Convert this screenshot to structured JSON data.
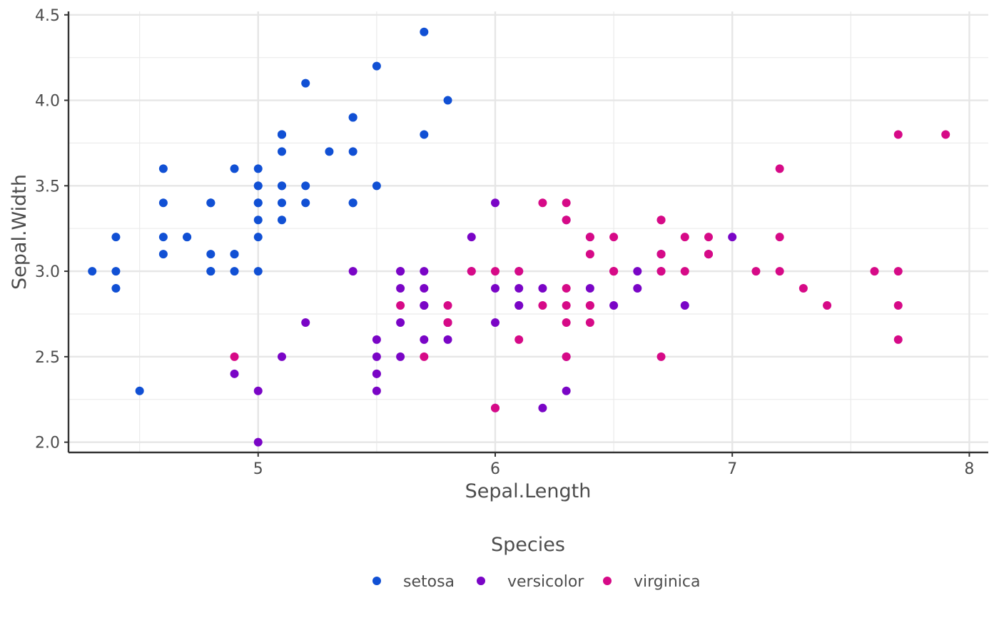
{
  "chart_data": {
    "type": "scatter",
    "title": "",
    "xlabel": "Sepal.Length",
    "ylabel": "Sepal.Width",
    "xlim": [
      4.2,
      8.08
    ],
    "ylim": [
      1.94,
      4.52
    ],
    "x_ticks": [
      5,
      6,
      7,
      8
    ],
    "y_ticks": [
      2.0,
      2.5,
      3.0,
      3.5,
      4.0,
      4.5
    ],
    "x_tick_labels": [
      "5",
      "6",
      "7",
      "8"
    ],
    "y_tick_labels": [
      "2.0",
      "2.5",
      "3.0",
      "3.5",
      "4.0",
      "4.5"
    ],
    "grid": true,
    "legend": {
      "title": "Species",
      "position": "bottom",
      "entries": [
        "setosa",
        "versicolor",
        "virginica"
      ]
    },
    "colors": {
      "setosa": "#1150d4",
      "versicolor": "#7a05c6",
      "virginica": "#d60a87"
    },
    "series": [
      {
        "name": "setosa",
        "points": [
          [
            5.1,
            3.5
          ],
          [
            4.9,
            3.0
          ],
          [
            4.7,
            3.2
          ],
          [
            4.6,
            3.1
          ],
          [
            5.0,
            3.6
          ],
          [
            5.4,
            3.9
          ],
          [
            4.6,
            3.4
          ],
          [
            5.0,
            3.4
          ],
          [
            4.4,
            2.9
          ],
          [
            4.9,
            3.1
          ],
          [
            5.4,
            3.7
          ],
          [
            4.8,
            3.4
          ],
          [
            4.8,
            3.0
          ],
          [
            4.3,
            3.0
          ],
          [
            5.8,
            4.0
          ],
          [
            5.7,
            4.4
          ],
          [
            5.4,
            3.9
          ],
          [
            5.1,
            3.5
          ],
          [
            5.7,
            3.8
          ],
          [
            5.1,
            3.8
          ],
          [
            5.4,
            3.4
          ],
          [
            5.1,
            3.7
          ],
          [
            4.6,
            3.6
          ],
          [
            5.1,
            3.3
          ],
          [
            4.8,
            3.4
          ],
          [
            5.0,
            3.0
          ],
          [
            5.0,
            3.4
          ],
          [
            5.2,
            3.5
          ],
          [
            5.2,
            3.4
          ],
          [
            4.7,
            3.2
          ],
          [
            4.8,
            3.1
          ],
          [
            5.4,
            3.4
          ],
          [
            5.2,
            4.1
          ],
          [
            5.5,
            4.2
          ],
          [
            4.9,
            3.1
          ],
          [
            5.0,
            3.2
          ],
          [
            5.5,
            3.5
          ],
          [
            4.9,
            3.6
          ],
          [
            4.4,
            3.0
          ],
          [
            5.1,
            3.4
          ],
          [
            5.0,
            3.5
          ],
          [
            4.5,
            2.3
          ],
          [
            4.4,
            3.2
          ],
          [
            5.0,
            3.5
          ],
          [
            5.1,
            3.8
          ],
          [
            4.8,
            3.0
          ],
          [
            5.1,
            3.8
          ],
          [
            4.6,
            3.2
          ],
          [
            5.3,
            3.7
          ],
          [
            5.0,
            3.3
          ]
        ]
      },
      {
        "name": "versicolor",
        "points": [
          [
            7.0,
            3.2
          ],
          [
            6.4,
            3.2
          ],
          [
            6.9,
            3.1
          ],
          [
            5.5,
            2.3
          ],
          [
            6.5,
            2.8
          ],
          [
            5.7,
            2.8
          ],
          [
            6.3,
            3.3
          ],
          [
            4.9,
            2.4
          ],
          [
            6.6,
            2.9
          ],
          [
            5.2,
            2.7
          ],
          [
            5.0,
            2.0
          ],
          [
            5.9,
            3.0
          ],
          [
            6.0,
            2.2
          ],
          [
            6.1,
            2.9
          ],
          [
            5.6,
            2.9
          ],
          [
            6.7,
            3.1
          ],
          [
            5.6,
            3.0
          ],
          [
            5.8,
            2.7
          ],
          [
            6.2,
            2.2
          ],
          [
            5.6,
            2.5
          ],
          [
            5.9,
            3.2
          ],
          [
            6.1,
            2.8
          ],
          [
            6.3,
            2.5
          ],
          [
            6.1,
            2.8
          ],
          [
            6.4,
            2.9
          ],
          [
            6.6,
            3.0
          ],
          [
            6.8,
            2.8
          ],
          [
            6.7,
            3.0
          ],
          [
            6.0,
            2.9
          ],
          [
            5.7,
            2.6
          ],
          [
            5.5,
            2.4
          ],
          [
            5.5,
            2.4
          ],
          [
            5.8,
            2.7
          ],
          [
            6.0,
            2.7
          ],
          [
            5.4,
            3.0
          ],
          [
            6.0,
            3.4
          ],
          [
            6.7,
            3.1
          ],
          [
            6.3,
            2.3
          ],
          [
            5.6,
            3.0
          ],
          [
            5.5,
            2.5
          ],
          [
            5.5,
            2.6
          ],
          [
            6.1,
            3.0
          ],
          [
            5.8,
            2.6
          ],
          [
            5.0,
            2.3
          ],
          [
            5.6,
            2.7
          ],
          [
            5.7,
            3.0
          ],
          [
            5.7,
            2.9
          ],
          [
            6.2,
            2.9
          ],
          [
            5.1,
            2.5
          ],
          [
            5.7,
            2.8
          ]
        ]
      },
      {
        "name": "virginica",
        "points": [
          [
            6.3,
            3.3
          ],
          [
            5.8,
            2.7
          ],
          [
            7.1,
            3.0
          ],
          [
            6.3,
            2.9
          ],
          [
            6.5,
            3.0
          ],
          [
            7.6,
            3.0
          ],
          [
            4.9,
            2.5
          ],
          [
            7.3,
            2.9
          ],
          [
            6.7,
            2.5
          ],
          [
            7.2,
            3.6
          ],
          [
            6.5,
            3.2
          ],
          [
            6.4,
            2.7
          ],
          [
            6.8,
            3.0
          ],
          [
            5.7,
            2.5
          ],
          [
            5.8,
            2.8
          ],
          [
            6.4,
            3.2
          ],
          [
            6.5,
            3.0
          ],
          [
            7.7,
            3.8
          ],
          [
            7.7,
            2.6
          ],
          [
            6.0,
            2.2
          ],
          [
            6.9,
            3.2
          ],
          [
            5.6,
            2.8
          ],
          [
            7.7,
            2.8
          ],
          [
            6.3,
            2.7
          ],
          [
            6.7,
            3.3
          ],
          [
            7.2,
            3.2
          ],
          [
            6.2,
            2.8
          ],
          [
            6.1,
            3.0
          ],
          [
            6.4,
            2.8
          ],
          [
            7.2,
            3.0
          ],
          [
            7.4,
            2.8
          ],
          [
            7.9,
            3.8
          ],
          [
            6.4,
            2.8
          ],
          [
            6.3,
            2.8
          ],
          [
            6.1,
            2.6
          ],
          [
            7.7,
            3.0
          ],
          [
            6.3,
            3.4
          ],
          [
            6.4,
            3.1
          ],
          [
            6.0,
            3.0
          ],
          [
            6.9,
            3.1
          ],
          [
            6.7,
            3.1
          ],
          [
            6.9,
            3.1
          ],
          [
            5.8,
            2.7
          ],
          [
            6.8,
            3.2
          ],
          [
            6.7,
            3.3
          ],
          [
            6.7,
            3.0
          ],
          [
            6.3,
            2.5
          ],
          [
            6.5,
            3.0
          ],
          [
            6.2,
            3.4
          ],
          [
            5.9,
            3.0
          ]
        ]
      }
    ]
  }
}
